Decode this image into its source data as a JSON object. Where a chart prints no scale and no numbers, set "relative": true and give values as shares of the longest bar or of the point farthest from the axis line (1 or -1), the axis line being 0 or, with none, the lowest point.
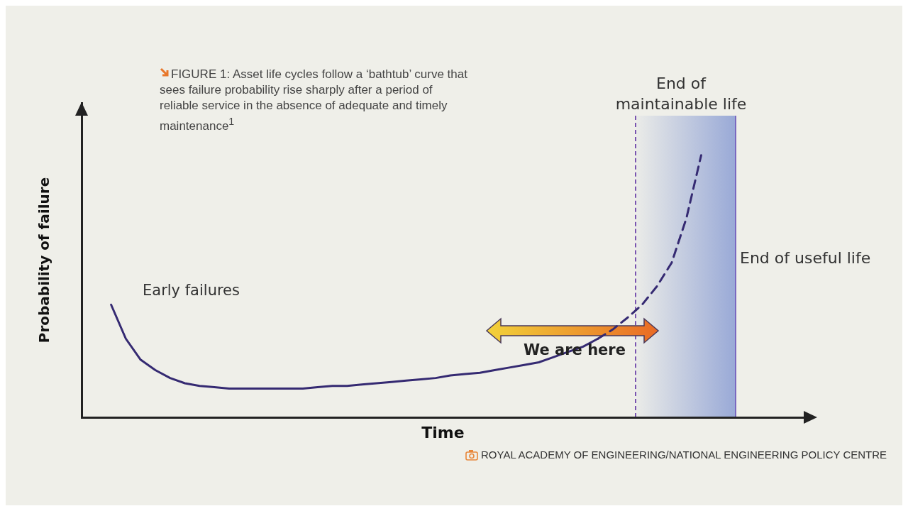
{
  "chart_data": {
    "type": "line",
    "title": "FIGURE 1: Asset life cycles follow a ‘bathtub’ curve that sees failure probability rise sharply after a period of reliable service in the absence of adequate and timely maintenance$^{1}$",
    "xlabel": "Time",
    "ylabel": "Probability of failure",
    "relative": true,
    "marker": "none",
    "categories": [
      null,
      null,
      null,
      null,
      null,
      null,
      null,
      null,
      null,
      null,
      null,
      null,
      null,
      null,
      null,
      null,
      null,
      null,
      null,
      null,
      null,
      null,
      null,
      null,
      null,
      null,
      null,
      null,
      null,
      null,
      null,
      null,
      null,
      null,
      null,
      null,
      null,
      null,
      null,
      null,
      null,
      null,
      null,
      null,
      null,
      null,
      null,
      null,
      null,
      null
    ],
    "series": [
      {
        "color": "#352a72",
        "line_style": "solid",
        "values": [
          null,
          null,
          0.43,
          0.3,
          0.22,
          0.18,
          0.15,
          0.13,
          0.12,
          0.115,
          0.11,
          0.11,
          0.11,
          0.11,
          0.11,
          0.11,
          0.115,
          0.12,
          0.12,
          0.125,
          0.13,
          0.135,
          0.14,
          0.145,
          0.15,
          0.16,
          0.165,
          0.17,
          0.18,
          0.19,
          0.2,
          0.21,
          0.23,
          0.25,
          0.27,
          0.3,
          null,
          null,
          null,
          null,
          null,
          null,
          null,
          null,
          null,
          null,
          null,
          null,
          null,
          null
        ]
      },
      {
        "color": "#352a72",
        "line_style": "dashed",
        "values": [
          null,
          null,
          null,
          null,
          null,
          null,
          null,
          null,
          null,
          null,
          null,
          null,
          null,
          null,
          null,
          null,
          null,
          null,
          null,
          null,
          null,
          null,
          null,
          null,
          null,
          null,
          null,
          null,
          null,
          null,
          null,
          null,
          null,
          null,
          null,
          0.3,
          0.335,
          0.38,
          0.43,
          0.5,
          0.59,
          0.76,
          1.0,
          null,
          null,
          null,
          null,
          null,
          null,
          null
        ]
      }
    ],
    "annotations": [
      "End of maintainable life",
      "End of useful life",
      "Early failures",
      "We are here",
      "ROYAL ACADEMY OF ENGINEERING/NATIONAL ENGINEERING POLICY CENTRE"
    ]
  }
}
